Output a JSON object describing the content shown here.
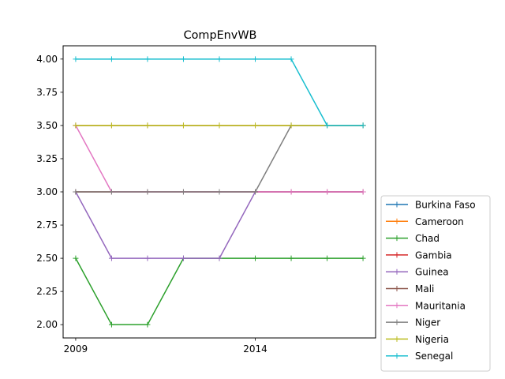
{
  "chart_data": {
    "type": "line",
    "title": "CompEnvWB",
    "xlabel": "",
    "ylabel": "",
    "x": [
      2009,
      2010,
      2011,
      2012,
      2013,
      2014,
      2015,
      2016,
      2017
    ],
    "xlim": [
      2008.65,
      2017.35
    ],
    "ylim": [
      1.9,
      4.1
    ],
    "xticks": [
      2009,
      2014
    ],
    "xtick_labels": [
      "2009",
      "2014"
    ],
    "yticks": [
      2.0,
      2.25,
      2.5,
      2.75,
      3.0,
      3.25,
      3.5,
      3.75,
      4.0
    ],
    "ytick_labels": [
      "2.00",
      "2.25",
      "2.50",
      "2.75",
      "3.00",
      "3.25",
      "3.50",
      "3.75",
      "4.00"
    ],
    "grid": false,
    "legend_position": "lower-right-outside",
    "marker": "plus",
    "series": [
      {
        "name": "Burkina Faso",
        "color": "#1f77b4",
        "values": [
          3.5,
          3.5,
          3.5,
          3.5,
          3.5,
          3.5,
          3.5,
          3.5,
          3.5
        ]
      },
      {
        "name": "Cameroon",
        "color": "#ff7f0e",
        "values": [
          3.5,
          3.5,
          3.5,
          3.5,
          3.5,
          3.5,
          3.5,
          3.5,
          3.5
        ]
      },
      {
        "name": "Chad",
        "color": "#2ca02c",
        "values": [
          2.5,
          2.0,
          2.0,
          2.5,
          2.5,
          2.5,
          2.5,
          2.5,
          2.5
        ]
      },
      {
        "name": "Gambia",
        "color": "#d62728",
        "values": [
          3.0,
          3.0,
          3.0,
          3.0,
          3.0,
          3.0,
          3.0,
          3.0,
          3.0
        ]
      },
      {
        "name": "Guinea",
        "color": "#9467bd",
        "values": [
          3.0,
          2.5,
          2.5,
          2.5,
          2.5,
          3.0,
          3.0,
          3.0,
          3.0
        ]
      },
      {
        "name": "Mali",
        "color": "#8c564b",
        "values": [
          3.0,
          3.0,
          3.0,
          3.0,
          3.0,
          3.0,
          3.0,
          3.0,
          3.0
        ]
      },
      {
        "name": "Mauritania",
        "color": "#e377c2",
        "values": [
          3.5,
          3.0,
          3.0,
          3.0,
          3.0,
          3.0,
          3.0,
          3.0,
          3.0
        ]
      },
      {
        "name": "Niger",
        "color": "#7f7f7f",
        "values": [
          3.0,
          3.0,
          3.0,
          3.0,
          3.0,
          3.0,
          3.5,
          3.5,
          3.5
        ]
      },
      {
        "name": "Nigeria",
        "color": "#bcbd22",
        "values": [
          3.5,
          3.5,
          3.5,
          3.5,
          3.5,
          3.5,
          3.5,
          3.5,
          3.5
        ]
      },
      {
        "name": "Senegal",
        "color": "#17becf",
        "values": [
          4.0,
          4.0,
          4.0,
          4.0,
          4.0,
          4.0,
          4.0,
          3.5,
          3.5
        ]
      }
    ]
  }
}
